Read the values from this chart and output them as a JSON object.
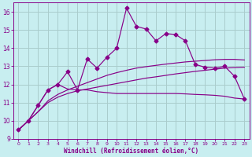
{
  "xlabel": "Windchill (Refroidissement éolien,°C)",
  "bg_color": "#c8eef0",
  "grid_color": "#aacccc",
  "line_color": "#880088",
  "x_values": [
    0,
    1,
    2,
    3,
    4,
    5,
    6,
    7,
    8,
    9,
    10,
    11,
    12,
    13,
    14,
    15,
    16,
    17,
    18,
    19,
    20,
    21,
    22,
    23
  ],
  "line1_y": [
    9.5,
    10.0,
    10.85,
    11.7,
    12.0,
    12.7,
    11.7,
    13.4,
    12.9,
    13.5,
    14.0,
    16.2,
    15.2,
    15.05,
    14.4,
    14.8,
    14.75,
    14.4,
    13.1,
    12.95,
    12.9,
    13.0,
    12.45,
    11.2
  ],
  "line2_y": [
    9.5,
    10.0,
    10.85,
    11.7,
    12.0,
    11.75,
    11.7,
    11.7,
    11.6,
    11.55,
    11.5,
    11.5,
    11.5,
    11.5,
    11.5,
    11.5,
    11.5,
    11.48,
    11.45,
    11.43,
    11.4,
    11.35,
    11.25,
    11.2
  ],
  "line3_y": [
    9.5,
    10.0,
    10.5,
    11.0,
    11.3,
    11.5,
    11.65,
    11.75,
    11.85,
    11.95,
    12.05,
    12.15,
    12.25,
    12.35,
    12.42,
    12.5,
    12.58,
    12.65,
    12.72,
    12.78,
    12.84,
    12.9,
    12.93,
    12.95
  ],
  "line4_y": [
    9.5,
    10.0,
    10.5,
    11.1,
    11.45,
    11.7,
    11.9,
    12.1,
    12.3,
    12.5,
    12.65,
    12.78,
    12.9,
    12.98,
    13.05,
    13.12,
    13.18,
    13.24,
    13.28,
    13.32,
    13.36,
    13.38,
    13.38,
    13.35
  ],
  "ylim": [
    9,
    16.5
  ],
  "xlim_min": -0.5,
  "xlim_max": 23.5,
  "yticks": [
    9,
    10,
    11,
    12,
    13,
    14,
    15,
    16
  ],
  "xticks": [
    0,
    1,
    2,
    3,
    4,
    5,
    6,
    7,
    8,
    9,
    10,
    11,
    12,
    13,
    14,
    15,
    16,
    17,
    18,
    19,
    20,
    21,
    22,
    23
  ]
}
